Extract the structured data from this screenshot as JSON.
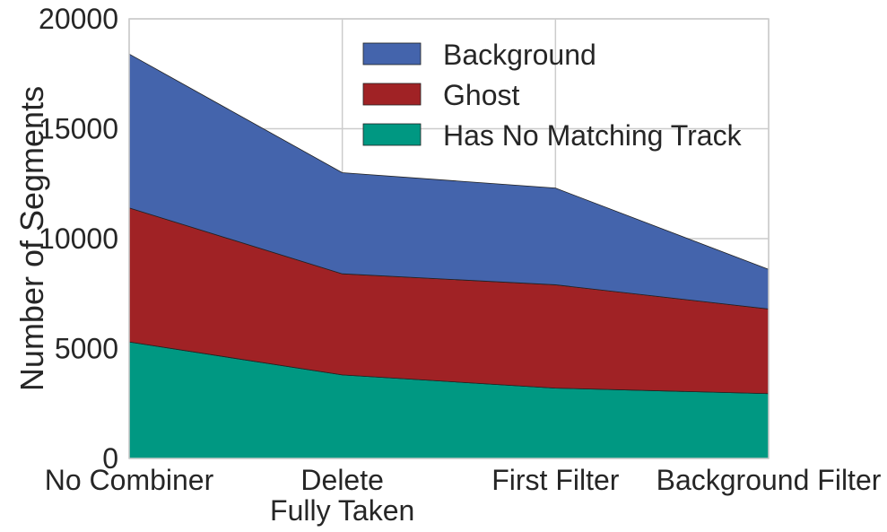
{
  "chart_data": {
    "type": "area",
    "stacked": true,
    "categories": [
      "No Combiner",
      "Delete\nFully Taken",
      "First Filter",
      "Background Filter"
    ],
    "series": [
      {
        "name": "Has No Matching Track",
        "values": [
          5300,
          3800,
          3200,
          2950
        ],
        "color": "#009882"
      },
      {
        "name": "Ghost",
        "values": [
          6100,
          4600,
          4700,
          3850
        ],
        "color": "#a02225"
      },
      {
        "name": "Background",
        "values": [
          7000,
          4600,
          4400,
          1800
        ],
        "color": "#4464ac"
      }
    ],
    "stack_totals": [
      18400,
      13000,
      12300,
      8600
    ],
    "title": "",
    "xlabel": "",
    "ylabel": "Number of Segments",
    "ylim": [
      0,
      20000
    ],
    "yticks": [
      0,
      5000,
      10000,
      15000,
      20000
    ],
    "grid": true,
    "legend_position": "top-right",
    "legend_order": [
      "Background",
      "Ghost",
      "Has No Matching Track"
    ]
  }
}
